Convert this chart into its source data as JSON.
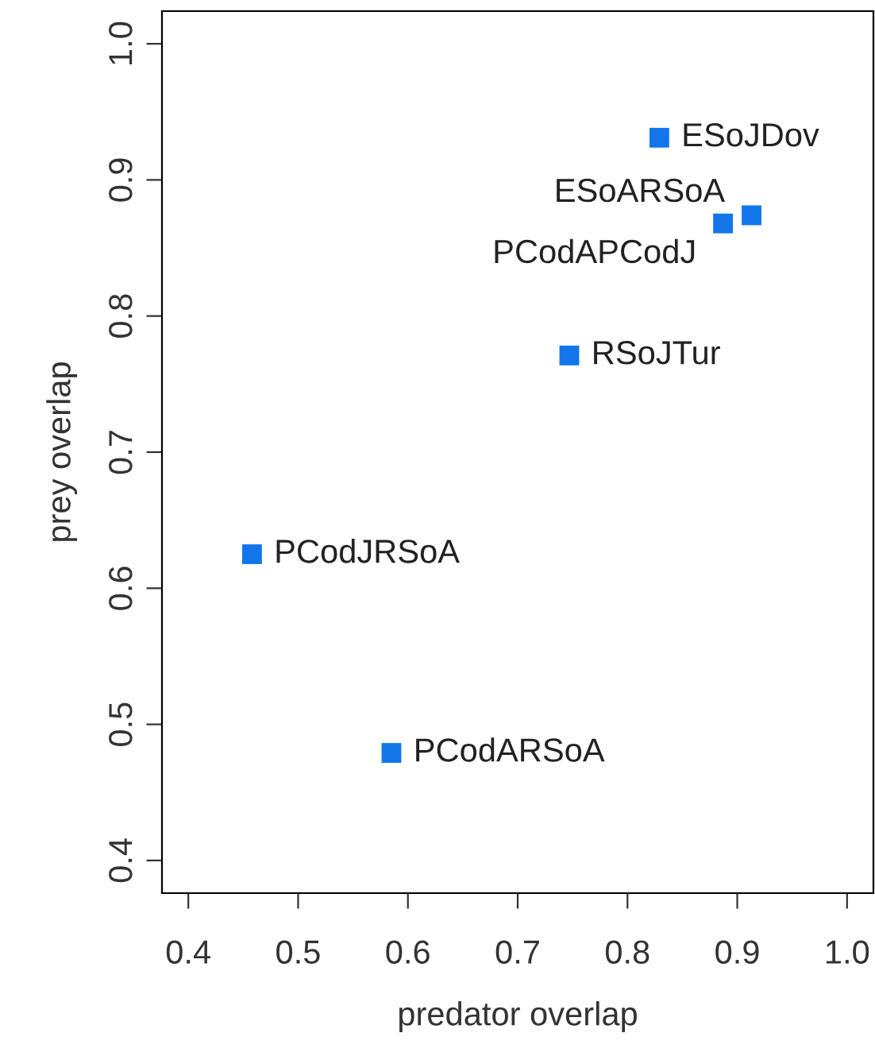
{
  "chart_data": {
    "type": "scatter",
    "xlabel": "predator overlap",
    "ylabel": "prey overlap",
    "x": [
      0.829,
      0.913,
      0.887,
      0.747,
      0.458,
      0.585
    ],
    "series": [
      {
        "color": "#1276ea",
        "values": [
          0.931,
          0.874,
          0.868,
          0.771,
          0.625,
          0.479
        ]
      }
    ],
    "marker": "square",
    "xlim": [
      0.376,
      1.024
    ],
    "ylim": [
      0.376,
      1.024
    ],
    "xticks": [
      0.4,
      0.5,
      0.6,
      0.7,
      0.8,
      0.9,
      {
        "value": 1.0,
        "label": "1.0"
      }
    ],
    "yticks": [
      0.4,
      0.5,
      0.6,
      0.7,
      0.8,
      0.9,
      {
        "value": 1.0,
        "label": "1.0"
      }
    ],
    "grid": false,
    "annotations": [
      {
        "text": "ESoJDov",
        "x": 0.829,
        "y": 0.931
      },
      {
        "text": "ESoARSoA",
        "x": 0.913,
        "y": 0.874
      },
      {
        "text": "PCodAPCodJ",
        "x": 0.887,
        "y": 0.868
      },
      {
        "text": "RSoJTur",
        "x": 0.747,
        "y": 0.771
      },
      {
        "text": "PCodJRSoA",
        "x": 0.458,
        "y": 0.625
      },
      {
        "text": "PCodARSoA",
        "x": 0.585,
        "y": 0.479
      }
    ]
  }
}
